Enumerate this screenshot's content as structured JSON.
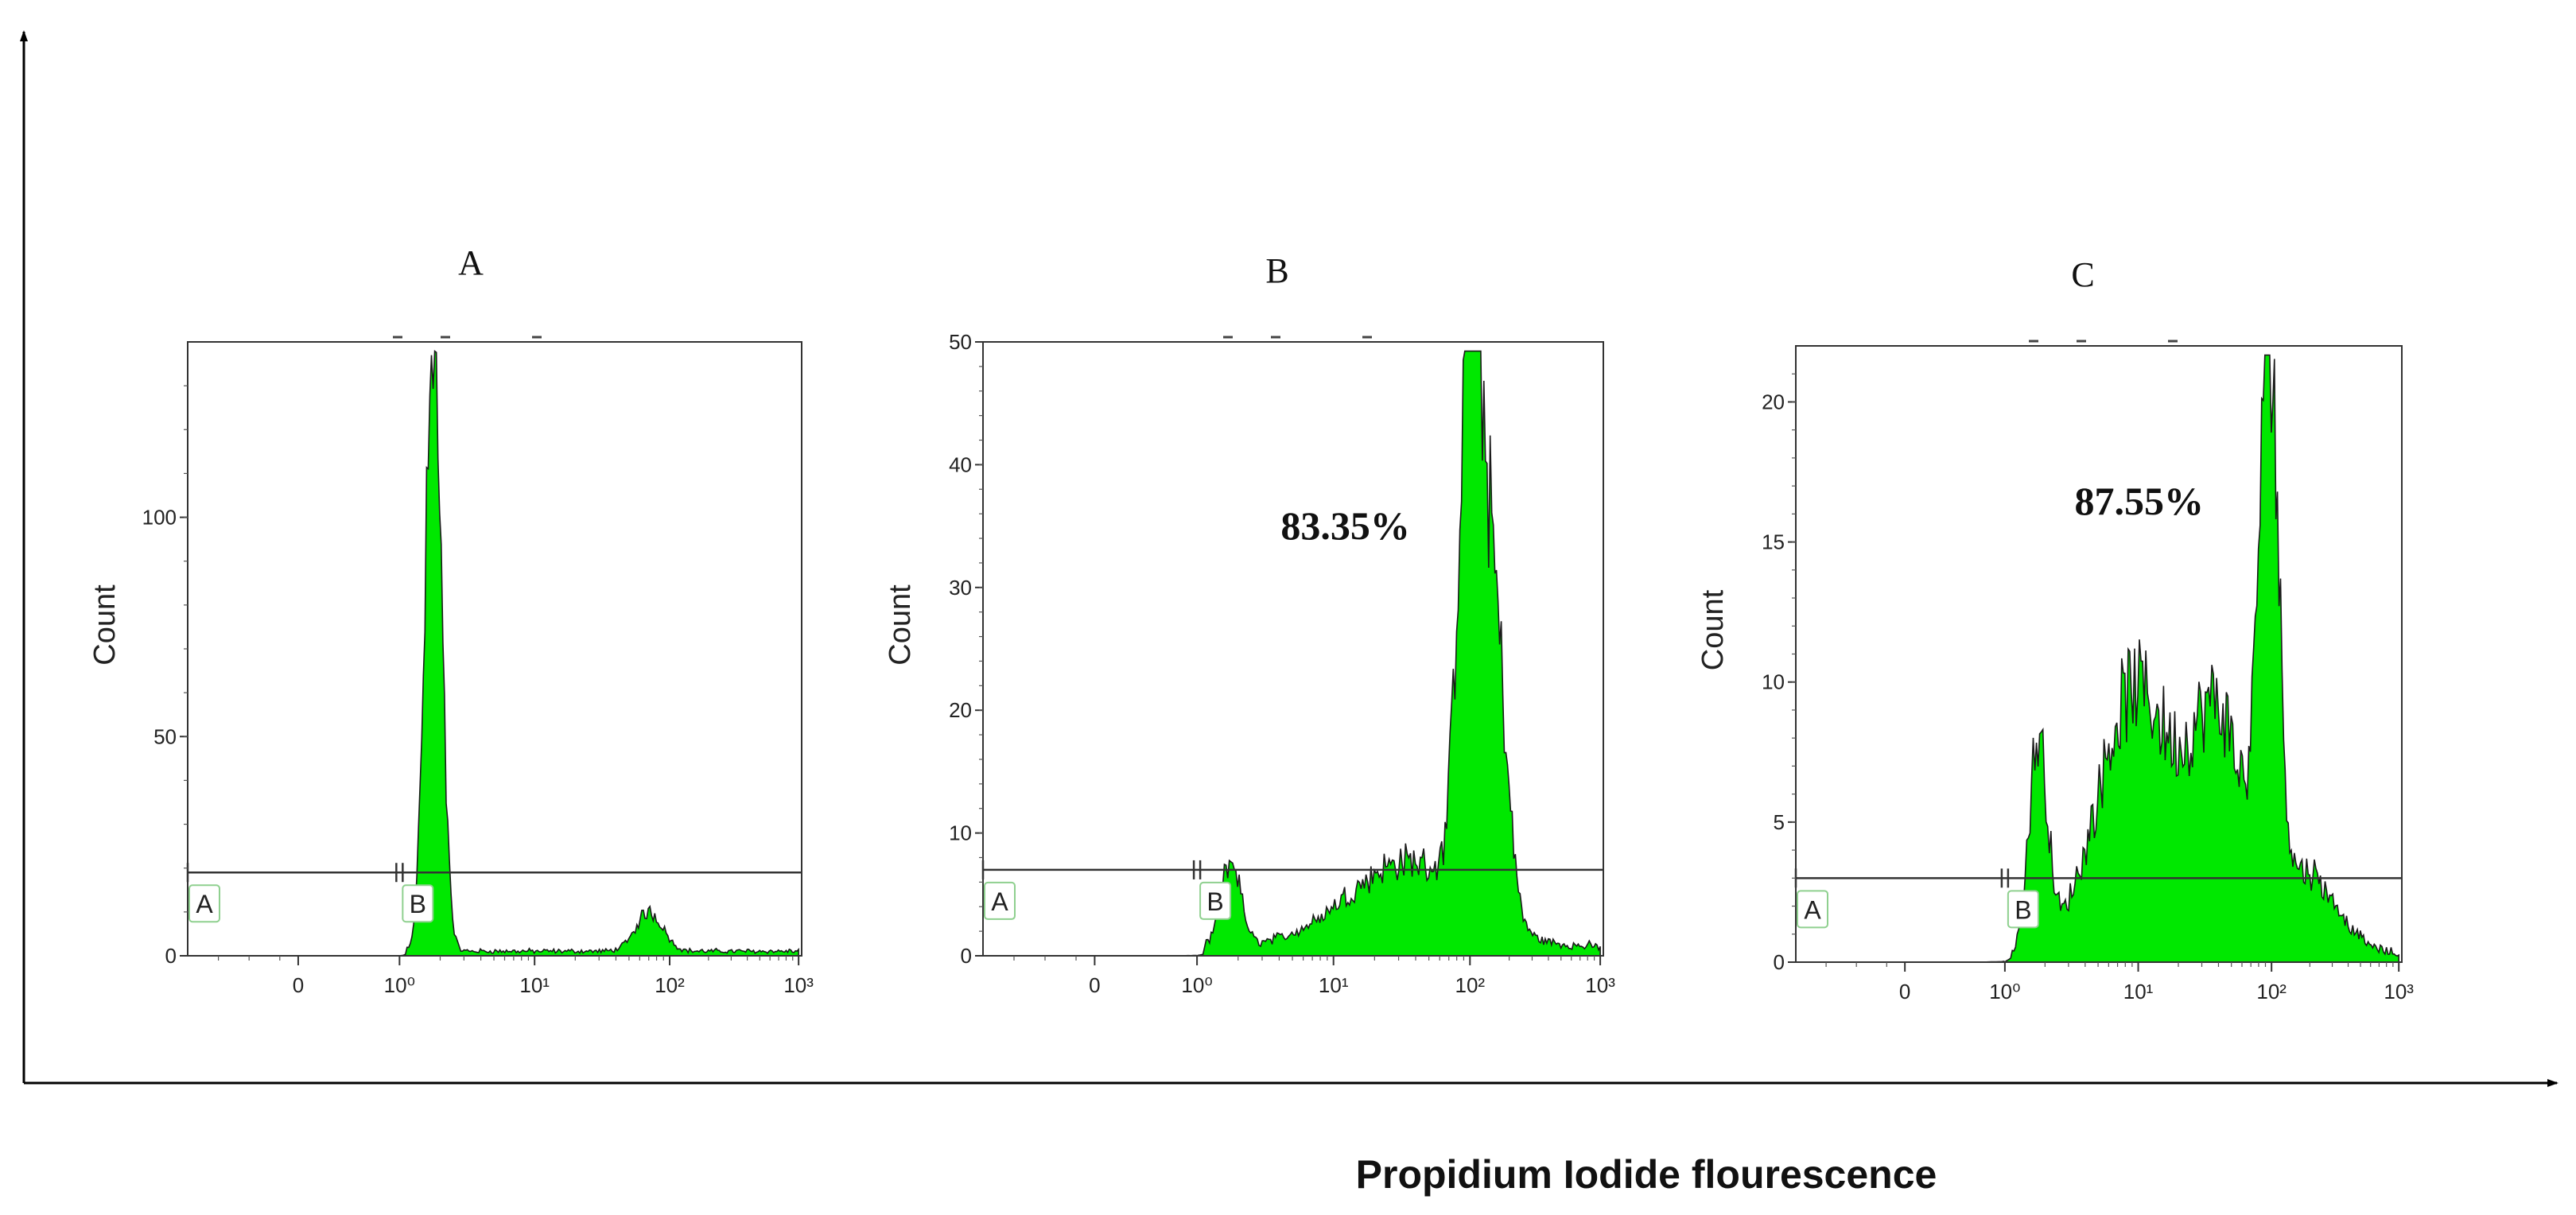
{
  "figure": {
    "x_axis_title": "Propidium Iodide flourescence",
    "colors": {
      "gate_a": "#e8003a",
      "gate_b": "#00e800",
      "outline": "#1a1a1a",
      "axis": "#000000"
    }
  },
  "chart_data": [
    {
      "type": "area",
      "panel_label": "A",
      "ylabel": "Count",
      "ylim": [
        0,
        140
      ],
      "yticks": [
        0,
        50,
        100
      ],
      "xscale": "log",
      "xticks": [
        "0",
        "10⁰",
        "10¹",
        "10²",
        "10³"
      ],
      "gate_level": 19,
      "gates": [
        {
          "name": "A",
          "from": "min",
          "to": "10⁰"
        },
        {
          "name": "B",
          "from": "10⁰",
          "to": "max"
        }
      ],
      "percent_label": "",
      "peaks": [
        {
          "gate": "A",
          "center": 0.25,
          "height": 133,
          "width": 0.06
        },
        {
          "gate": "B",
          "center": 1.85,
          "height": 9,
          "width": 0.1
        }
      ],
      "baseline_b": 1.5
    },
    {
      "type": "area",
      "panel_label": "B",
      "ylabel": "Count",
      "ylim": [
        0,
        50
      ],
      "yticks": [
        0,
        10,
        20,
        30,
        40,
        50
      ],
      "xscale": "log",
      "xticks": [
        "0",
        "10⁰",
        "10¹",
        "10²",
        "10³"
      ],
      "gate_level": 7,
      "gates": [
        {
          "name": "A",
          "from": "min",
          "to": "10⁰"
        },
        {
          "name": "B",
          "from": "10⁰",
          "to": "max"
        }
      ],
      "percent_label": "83.35%",
      "peaks": [
        {
          "gate": "A",
          "center": 0.25,
          "height": 7,
          "width": 0.07
        },
        {
          "gate": "B",
          "center": 2.0,
          "height": 47,
          "width": 0.08
        },
        {
          "gate": "B",
          "center": 2.17,
          "height": 26,
          "width": 0.1
        },
        {
          "gate": "B",
          "center": 1.55,
          "height": 7,
          "width": 0.45
        }
      ],
      "baseline_b": 1.0
    },
    {
      "type": "area",
      "panel_label": "C",
      "ylabel": "Count",
      "ylim": [
        0,
        22
      ],
      "yticks": [
        0,
        5,
        10,
        15,
        20
      ],
      "xscale": "log",
      "xticks": [
        "0",
        "10⁰",
        "10¹",
        "10²",
        "10³"
      ],
      "gate_level": 3,
      "gates": [
        {
          "name": "A",
          "from": "min",
          "to": "10⁰"
        },
        {
          "name": "B",
          "from": "10⁰",
          "to": "max"
        }
      ],
      "percent_label": "87.55%",
      "peaks": [
        {
          "gate": "A",
          "center": 0.25,
          "height": 7.5,
          "width": 0.07
        },
        {
          "gate": "B",
          "center": 0.98,
          "height": 9.5,
          "width": 0.28
        },
        {
          "gate": "B",
          "center": 1.6,
          "height": 8,
          "width": 0.2
        },
        {
          "gate": "B",
          "center": 1.98,
          "height": 20.5,
          "width": 0.07
        },
        {
          "gate": "B",
          "center": 2.25,
          "height": 3,
          "width": 0.25
        }
      ],
      "baseline_b": 0.4
    }
  ]
}
